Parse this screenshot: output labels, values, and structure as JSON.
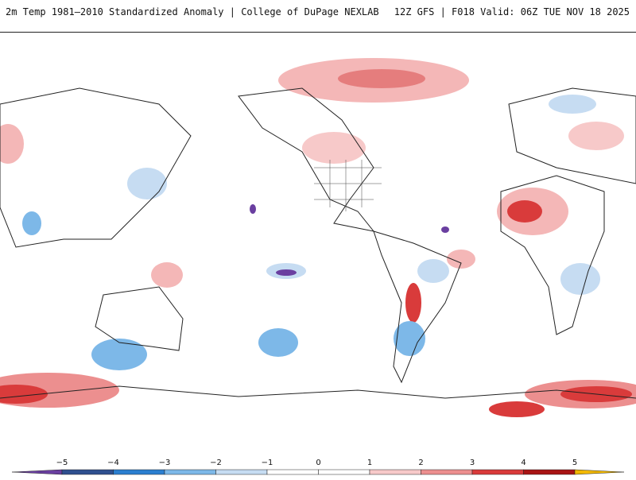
{
  "header": {
    "title_left": "2m Temp 1981–2010 Standardized Anomaly | College of DuPage NEXLAB",
    "title_right": "12Z GFS | F018 Valid: 06Z TUE NOV 18 2025"
  },
  "map": {
    "description_name": "global-anomaly-map",
    "background_color": "#ffffff",
    "coast_color": "#222222"
  },
  "legend": {
    "ticks": [
      "−5",
      "−4",
      "−3",
      "−2",
      "−1",
      "0",
      "1",
      "2",
      "3",
      "4",
      "5"
    ],
    "colors": [
      "#6a3fa0",
      "#2f4f8f",
      "#2b7fd0",
      "#7db8e8",
      "#c6dcf2",
      "#ffffff",
      "#ffffff",
      "#f7c9c9",
      "#ec8f8f",
      "#d93b3b",
      "#a81414",
      "#f2b800"
    ]
  }
}
